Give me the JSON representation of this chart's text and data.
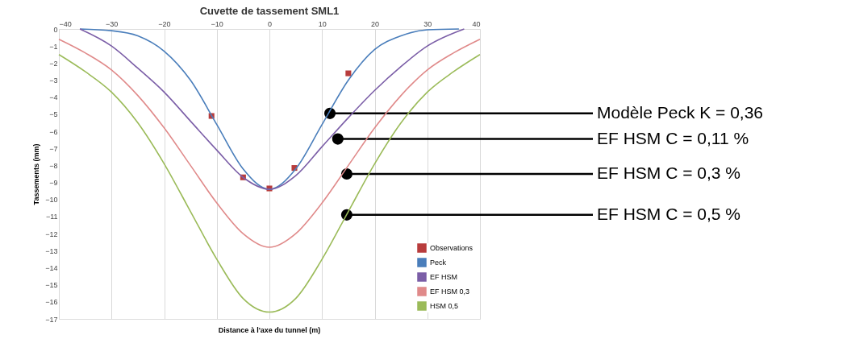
{
  "chart_data": {
    "type": "line",
    "title": "Cuvette de tassement SML1",
    "xlabel": "Distance à l'axe du tunnel (m)",
    "ylabel": "Tassements (mm)",
    "xlim": [
      -40,
      40
    ],
    "xticks": [
      -40,
      -30,
      -20,
      -10,
      0,
      10,
      20,
      30,
      40
    ],
    "ylim": [
      -17,
      0
    ],
    "yticks": [
      0,
      -1,
      -2,
      -3,
      -4,
      -5,
      -6,
      -7,
      -8,
      -9,
      -10,
      -11,
      -12,
      -13,
      -14,
      -15,
      -16,
      -17
    ],
    "grid": "x",
    "legend": "bottom right",
    "line_style": "solid",
    "series": [
      {
        "name": "Observations",
        "type": "scatter",
        "marker": "square",
        "color": "#b83c3c",
        "x": [
          -11,
          -5,
          0,
          4.75,
          15
        ],
        "values": [
          -5.1,
          -8.7,
          -9.35,
          -8.15,
          -2.6
        ]
      },
      {
        "name": "Peck",
        "color": "#4a7ebb",
        "x": [
          -36,
          -30,
          -25,
          -20,
          -15,
          -10,
          -5,
          0,
          5,
          10,
          15,
          20,
          25,
          30,
          36
        ],
        "values": [
          0,
          -0.1,
          -0.4,
          -1.3,
          -3.0,
          -5.6,
          -8.2,
          -9.4,
          -8.2,
          -5.6,
          -3.0,
          -1.2,
          -0.4,
          -0.05,
          0
        ]
      },
      {
        "name": "EF HSM",
        "color": "#7b5ea7",
        "x": [
          -36,
          -30,
          -25,
          -20,
          -15,
          -10,
          -5,
          0,
          5,
          10,
          15,
          20,
          25,
          30,
          37
        ],
        "values": [
          0,
          -1.0,
          -2.3,
          -3.7,
          -5.4,
          -7.1,
          -8.7,
          -9.4,
          -8.6,
          -6.9,
          -5.2,
          -3.6,
          -2.2,
          -1.0,
          0
        ]
      },
      {
        "name": "EF HSM 0,3",
        "color": "#e08a8a",
        "x": [
          -40,
          -35,
          -30,
          -25,
          -20,
          -15,
          -10,
          -5,
          0,
          5,
          10,
          15,
          20,
          25,
          30,
          35,
          40
        ],
        "values": [
          -0.6,
          -1.4,
          -2.4,
          -3.9,
          -5.8,
          -8.0,
          -10.2,
          -12.0,
          -12.8,
          -12.0,
          -10.2,
          -8.0,
          -5.8,
          -3.9,
          -2.4,
          -1.4,
          -0.6
        ]
      },
      {
        "name": "HSM 0,5",
        "color": "#9bbb59",
        "x": [
          -40,
          -35,
          -30,
          -25,
          -20,
          -15,
          -10,
          -5,
          0,
          5,
          10,
          15,
          20,
          25,
          30,
          35,
          40
        ],
        "values": [
          -1.5,
          -2.5,
          -3.7,
          -5.5,
          -7.9,
          -10.7,
          -13.5,
          -15.8,
          -16.6,
          -15.8,
          -13.5,
          -10.7,
          -7.9,
          -5.5,
          -3.7,
          -2.5,
          -1.5
        ]
      }
    ],
    "annotations": [
      {
        "text": "Modèle Peck K = 0,36",
        "x": 11.5,
        "y": -4.95
      },
      {
        "text": "EF HSM C = 0,11 %",
        "x": 13,
        "y": -6.45
      },
      {
        "text": "EF HSM C = 0,3 %",
        "x": 14.7,
        "y": -8.5
      },
      {
        "text": "EF HSM C = 0,5 %",
        "x": 14.7,
        "y": -10.9
      }
    ]
  }
}
